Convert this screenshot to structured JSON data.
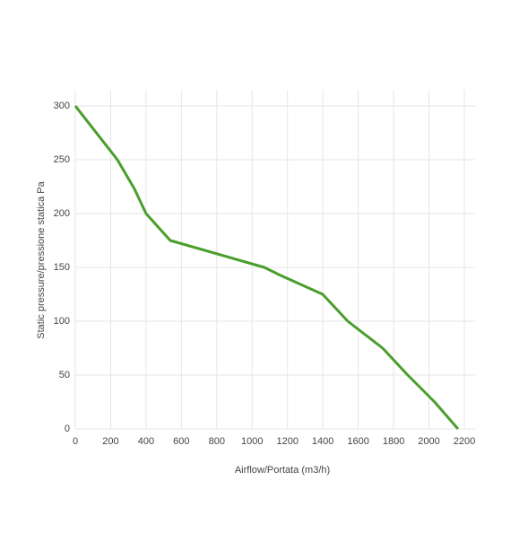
{
  "chart_data": {
    "type": "line",
    "x_label": "Airflow/Portata (m3/h)",
    "y_label": "Static pressure/pressione statica Pa",
    "series": [
      {
        "color": "#4a9e2c",
        "x": [
          0,
          238,
          334,
          400,
          537,
          1069,
          1155,
          1399,
          1541,
          1738,
          1880,
          2032,
          2164
        ],
        "values": [
          300,
          250,
          223,
          200,
          175,
          150,
          143,
          125,
          100,
          75,
          50,
          25,
          0
        ]
      }
    ],
    "xlim": [
      0,
      2260
    ],
    "xticks": [
      0,
      200,
      400,
      600,
      800,
      1000,
      1200,
      1400,
      1600,
      1800,
      2000,
      2200
    ],
    "ylim": [
      0,
      315
    ],
    "yticks": [
      0,
      50,
      100,
      150,
      200,
      250,
      300
    ],
    "grid": true
  }
}
